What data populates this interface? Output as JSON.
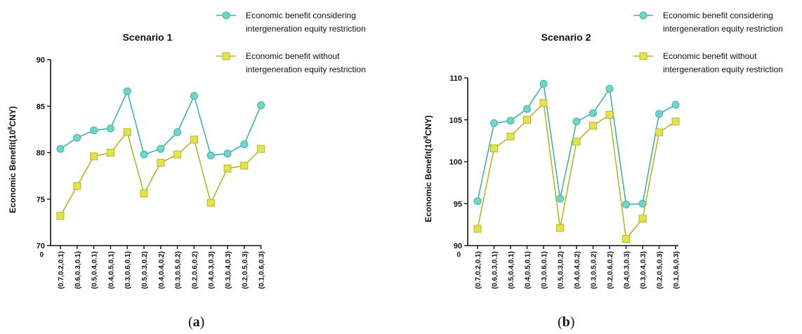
{
  "colors": {
    "with_restriction": "#6fd6c9",
    "with_restriction_stroke": "#3fb3a8",
    "without_restriction": "#e4e44a",
    "without_restriction_stroke": "#b5b52a",
    "axis": "#111111"
  },
  "panel_labels": [
    {
      "open": "(",
      "letter": "a",
      "close": ")"
    },
    {
      "open": "(",
      "letter": "b",
      "close": ")"
    }
  ],
  "chart_data": [
    {
      "type": "line",
      "title": "Scenario 1",
      "ylabel": "Economic Benefit(10",
      "ylabel_sup": "8",
      "ylabel_tail": "CNY)",
      "xlabel": "",
      "origin_label": "0",
      "ylim": [
        70,
        90
      ],
      "yticks": [
        70,
        75,
        80,
        85,
        90
      ],
      "legend_position": "top-right",
      "grid": false,
      "categories": [
        "(0.7,0.2,0.1)",
        "(0.6,0.3,0.1)",
        "(0.5,0.4,0.1)",
        "(0.4,0.5,0.1)",
        "(0.3,0.6,0.1)",
        "(0.5,0.3,0.2)",
        "(0.4,0.4,0.2)",
        "(0.3,0.5,0.2)",
        "(0.2,0.6,0.2)",
        "(0.4,0.3,0.3)",
        "(0.3,0.4,0.3)",
        "(0.2,0.5,0.3)",
        "(0.1,0.6,0.3)"
      ],
      "series": [
        {
          "name": [
            "Economic benefit considering",
            "intergeneration equity restriction"
          ],
          "marker": "circle",
          "values": [
            80.4,
            81.6,
            82.4,
            82.6,
            86.6,
            79.8,
            80.4,
            82.2,
            86.1,
            79.7,
            79.9,
            80.9,
            85.1
          ]
        },
        {
          "name": [
            "Economic benefit without",
            "intergeneration equity restriction"
          ],
          "marker": "square",
          "values": [
            73.2,
            76.4,
            79.6,
            80.0,
            82.2,
            75.6,
            78.9,
            79.8,
            81.4,
            74.6,
            78.3,
            78.6,
            80.4
          ]
        }
      ]
    },
    {
      "type": "line",
      "title": "Scenario 2",
      "ylabel": "Economic Benefit(10",
      "ylabel_sup": "8",
      "ylabel_tail": "CNY)",
      "xlabel": "",
      "origin_label": "0",
      "ylim": [
        90,
        110
      ],
      "yticks": [
        90,
        95,
        100,
        105,
        110
      ],
      "legend_position": "top-right",
      "grid": false,
      "categories": [
        "(0.7,0.2,0.1)",
        "(0.6,0.3,0.1)",
        "(0.5,0.4,0.1)",
        "(0.4,0.5,0.1)",
        "(0.3,0.6,0.1)",
        "(0.5,0.3,0.2)",
        "(0.4,0.4,0.2)",
        "(0.3,0.5,0.2)",
        "(0.2,0.6,0.2)",
        "(0.4,0.3,0.3)",
        "(0.3,0.4,0.3)",
        "(0.2,0.5,0.3)",
        "(0.1,0.6,0.3)"
      ],
      "series": [
        {
          "name": [
            "Economic benefit considering",
            "intergeneration equity restriction"
          ],
          "marker": "circle",
          "values": [
            95.3,
            104.6,
            104.9,
            106.3,
            109.3,
            95.6,
            104.8,
            105.8,
            108.7,
            94.9,
            95.0,
            105.7,
            106.8
          ]
        },
        {
          "name": [
            "Economic benefit without",
            "intergeneration equity restriction"
          ],
          "marker": "square",
          "values": [
            92.0,
            101.6,
            103.0,
            105.0,
            107.0,
            92.1,
            102.4,
            104.3,
            105.6,
            90.8,
            93.2,
            103.5,
            104.8
          ]
        }
      ]
    }
  ]
}
